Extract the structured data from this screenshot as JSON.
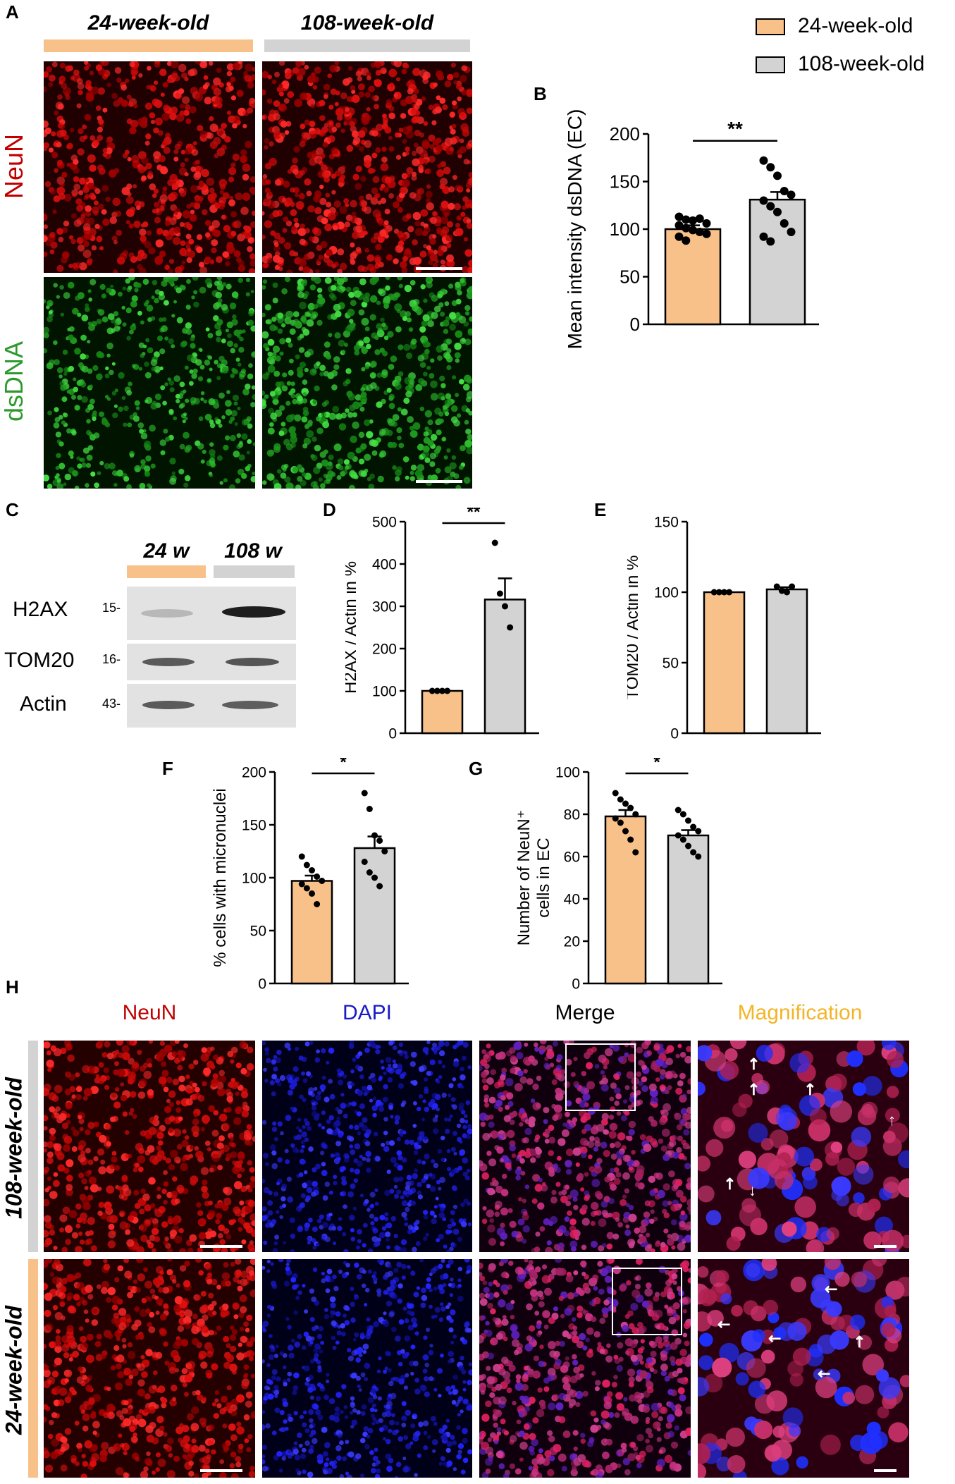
{
  "panel_letters": {
    "A": "A",
    "B": "B",
    "C": "C",
    "D": "D",
    "E": "E",
    "F": "F",
    "G": "G",
    "H": "H"
  },
  "colors": {
    "young": "#f9c18a",
    "old": "#d3d3d3",
    "neun": "#c00000",
    "dsdna": "#2e9a2e",
    "dapi": "#1a1ac8",
    "magnification": "#f3b428"
  },
  "panel_a": {
    "group_titles": [
      "24-week-old",
      "108-week-old"
    ],
    "row_labels": [
      "NeuN",
      "dsDNA"
    ]
  },
  "legend": {
    "items": [
      "24-week-old",
      "108-week-old"
    ]
  },
  "panel_c": {
    "lanes": [
      "24 w",
      "108 w"
    ],
    "rows": [
      {
        "name": "H2AX",
        "mw": "15-"
      },
      {
        "name": "TOM20",
        "mw": "16-"
      },
      {
        "name": "Actin",
        "mw": "43-"
      }
    ]
  },
  "panel_h": {
    "column_titles": [
      "NeuN",
      "DAPI",
      "Merge",
      "Magnification"
    ],
    "row_labels": [
      "108-week-old",
      "24-week-old"
    ]
  },
  "chart_data": [
    {
      "id": "B",
      "type": "bar",
      "categories": [
        "24-week-old",
        "108-week-old"
      ],
      "values": [
        100,
        131
      ],
      "errors": [
        4,
        8
      ],
      "points": [
        [
          113,
          110,
          109,
          111,
          106,
          104,
          101,
          99,
          97,
          95,
          92,
          88
        ],
        [
          172,
          165,
          156,
          140,
          136,
          130,
          124,
          118,
          106,
          97,
          92,
          87
        ]
      ],
      "ylabel": "Mean intensity dsDNA (EC)",
      "ylim": [
        0,
        200
      ],
      "yticks": [
        0,
        50,
        100,
        150,
        200
      ],
      "significance": "**"
    },
    {
      "id": "D",
      "type": "bar",
      "categories": [
        "24 w",
        "108 w"
      ],
      "values": [
        100,
        316
      ],
      "errors": [
        0,
        50
      ],
      "points": [
        [
          100,
          100,
          100,
          100
        ],
        [
          450,
          330,
          300,
          250
        ]
      ],
      "ylabel": "H2AX / Actin in %",
      "ylim": [
        0,
        500
      ],
      "yticks": [
        0,
        100,
        200,
        300,
        400,
        500
      ],
      "significance": "**"
    },
    {
      "id": "E",
      "type": "bar",
      "categories": [
        "24 w",
        "108 w"
      ],
      "values": [
        100,
        102
      ],
      "errors": [
        0,
        1.5
      ],
      "points": [
        [
          100,
          100,
          100,
          100
        ],
        [
          104,
          101,
          100,
          104
        ]
      ],
      "ylabel": "TOM20 / Actin in %",
      "ylim": [
        0,
        150
      ],
      "yticks": [
        0,
        50,
        100,
        150
      ],
      "significance": ""
    },
    {
      "id": "F",
      "type": "bar",
      "categories": [
        "24-week-old",
        "108-week-old"
      ],
      "values": [
        97,
        128
      ],
      "errors": [
        5,
        11
      ],
      "points": [
        [
          120,
          112,
          107,
          101,
          97,
          94,
          90,
          85,
          75
        ],
        [
          180,
          165,
          140,
          135,
          125,
          115,
          105,
          100,
          92
        ]
      ],
      "ylabel": "% cells with micronuclei",
      "ylim": [
        0,
        200
      ],
      "yticks": [
        0,
        50,
        100,
        150,
        200
      ],
      "significance": "*"
    },
    {
      "id": "G",
      "type": "bar",
      "categories": [
        "24-week-old",
        "108-week-old"
      ],
      "values": [
        79,
        70
      ],
      "errors": [
        3,
        2.5
      ],
      "points": [
        [
          90,
          87,
          85,
          83,
          80,
          78,
          76,
          72,
          68,
          62
        ],
        [
          82,
          80,
          77,
          74,
          72,
          70,
          68,
          65,
          62,
          60
        ]
      ],
      "ylabel": "Number of NeuN⁺ cells in EC",
      "ylim": [
        0,
        100
      ],
      "yticks": [
        0,
        20,
        40,
        60,
        80,
        100
      ],
      "significance": "*"
    }
  ]
}
